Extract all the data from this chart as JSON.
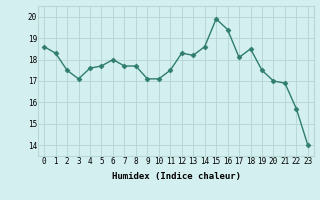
{
  "x": [
    0,
    1,
    2,
    3,
    4,
    5,
    6,
    7,
    8,
    9,
    10,
    11,
    12,
    13,
    14,
    15,
    16,
    17,
    18,
    19,
    20,
    21,
    22,
    23
  ],
  "y": [
    18.6,
    18.3,
    17.5,
    17.1,
    17.6,
    17.7,
    18.0,
    17.7,
    17.7,
    17.1,
    17.1,
    17.5,
    18.3,
    18.2,
    18.6,
    19.9,
    19.4,
    18.1,
    18.5,
    17.5,
    17.0,
    16.9,
    15.7,
    14.0
  ],
  "line_color": "#2e7d6e",
  "marker": "D",
  "marker_size": 2.5,
  "bg_color": "#d4efef",
  "grid_color": "#b8d8d8",
  "xlabel": "Humidex (Indice chaleur)",
  "ylim": [
    13.5,
    20.5
  ],
  "xlim": [
    -0.5,
    23.5
  ],
  "yticks": [
    14,
    15,
    16,
    17,
    18,
    19,
    20
  ],
  "xticks": [
    0,
    1,
    2,
    3,
    4,
    5,
    6,
    7,
    8,
    9,
    10,
    11,
    12,
    13,
    14,
    15,
    16,
    17,
    18,
    19,
    20,
    21,
    22,
    23
  ],
  "tick_fontsize": 5.5,
  "xlabel_fontsize": 6.5
}
